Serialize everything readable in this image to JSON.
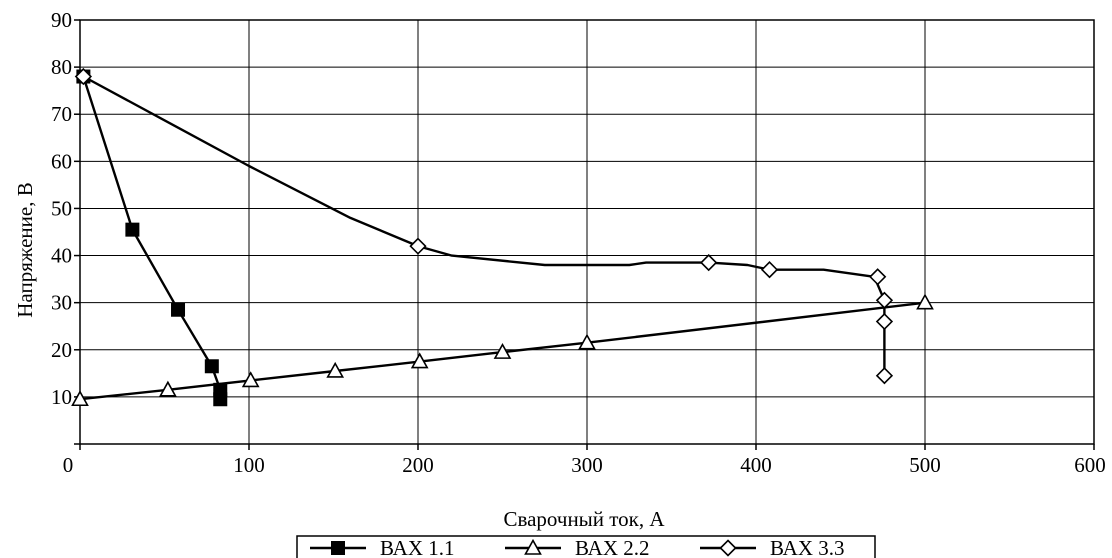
{
  "chart_data": {
    "type": "line",
    "title": "",
    "xlabel": "Сварочный ток, А",
    "ylabel": "Напряжение, В",
    "xlim": [
      0,
      600
    ],
    "ylim": [
      0,
      90
    ],
    "xticks": [
      "0",
      "100",
      "200",
      "300",
      "400",
      "500",
      "600"
    ],
    "yticks": [
      "10",
      "20",
      "30",
      "40",
      "50",
      "60",
      "70",
      "80",
      "90"
    ],
    "grid": true,
    "legend_position": "bottom",
    "series": [
      {
        "name": "ВАХ 1.1",
        "marker": "square-filled",
        "points": [
          [
            2,
            78
          ],
          [
            31,
            45.5
          ],
          [
            58,
            28.5
          ],
          [
            78,
            16.5
          ],
          [
            83,
            11.5
          ],
          [
            83,
            9.5
          ]
        ],
        "marker_points": [
          [
            2,
            78
          ],
          [
            31,
            45.5
          ],
          [
            58,
            28.5
          ],
          [
            78,
            16.5
          ],
          [
            83,
            11.5
          ],
          [
            83,
            9.5
          ]
        ]
      },
      {
        "name": "ВАХ 2.2",
        "marker": "triangle-open",
        "points": [
          [
            0,
            9.5
          ],
          [
            52,
            11.5
          ],
          [
            101,
            13.5
          ],
          [
            151,
            15.5
          ],
          [
            201,
            17.5
          ],
          [
            250,
            19.5
          ],
          [
            300,
            21.5
          ],
          [
            500,
            30
          ]
        ],
        "marker_points": [
          [
            0,
            9.5
          ],
          [
            52,
            11.5
          ],
          [
            101,
            13.5
          ],
          [
            151,
            15.5
          ],
          [
            201,
            17.5
          ],
          [
            250,
            19.5
          ],
          [
            300,
            21.5
          ],
          [
            500,
            30
          ]
        ]
      },
      {
        "name": "ВАХ 3.3",
        "marker": "diamond-open",
        "points": [
          [
            2,
            78
          ],
          [
            100,
            59
          ],
          [
            160,
            48
          ],
          [
            200,
            42
          ],
          [
            220,
            40
          ],
          [
            275,
            38
          ],
          [
            325,
            38
          ],
          [
            335,
            38.5
          ],
          [
            372,
            38.5
          ],
          [
            395,
            38
          ],
          [
            408,
            37
          ],
          [
            425,
            37
          ],
          [
            440,
            37
          ],
          [
            470,
            35.5
          ],
          [
            476,
            30.5
          ],
          [
            476,
            26
          ],
          [
            476,
            14.5
          ]
        ],
        "marker_points": [
          [
            2,
            78
          ],
          [
            200,
            42
          ],
          [
            372,
            38.5
          ],
          [
            408,
            37
          ],
          [
            472,
            35.5
          ],
          [
            476,
            30.5
          ],
          [
            476,
            26
          ],
          [
            476,
            14.5
          ]
        ]
      }
    ]
  }
}
